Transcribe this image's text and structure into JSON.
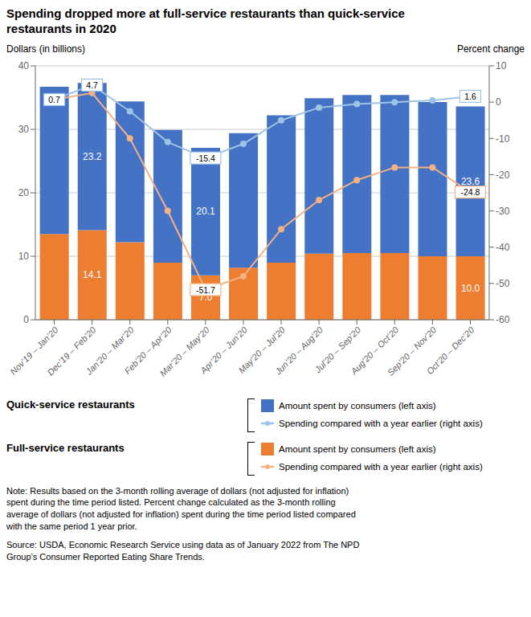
{
  "chart_data": {
    "type": "bar",
    "title": "Spending dropped more at full-service restaurants than quick-service\nrestaurants in 2020",
    "y_label": "Dollars (in billions)",
    "y2_label": "Percent change",
    "categories": [
      "Nov’19 – Jan’20",
      "Dec’19 – Feb’20",
      "Jan’20 – Mar’20",
      "Feb’20 – Apr’20",
      "Mar’20 – May’20",
      "Apr’20 – Jun’20",
      "May’20 – Jul’20",
      "Jun’20 – Aug’20",
      "Jul’20 – Sep’20",
      "Aug’20 – Oct’20",
      "Sep’20 – Nov’20",
      "Oct’20 – Dec’20"
    ],
    "series": [
      {
        "name": "Full-service restaurants",
        "type": "bar",
        "color": "#ED7D31",
        "values": [
          13.5,
          14.1,
          12.2,
          9.0,
          7.0,
          8.2,
          9.0,
          10.4,
          10.5,
          10.5,
          10.0,
          10.0
        ],
        "value_labels": [
          null,
          "14.1",
          null,
          null,
          "7.0",
          null,
          null,
          null,
          null,
          null,
          null,
          "10.0"
        ]
      },
      {
        "name": "Quick-service restaurants",
        "type": "bar",
        "color": "#4472C4",
        "values": [
          23.2,
          23.2,
          22.2,
          20.9,
          20.1,
          21.2,
          23.2,
          24.5,
          24.9,
          24.9,
          24.3,
          23.6
        ],
        "value_labels": [
          null,
          "23.2",
          null,
          null,
          "20.1",
          null,
          null,
          null,
          null,
          null,
          null,
          "23.6"
        ]
      },
      {
        "name": "Quick-service restaurants",
        "type": "line",
        "axis": "y2",
        "color": "#9DC3E6",
        "marker": "circle",
        "values": [
          0.7,
          4.7,
          -2.5,
          -11.0,
          -15.4,
          -11.5,
          -5.0,
          -1.5,
          -0.5,
          0.0,
          0.5,
          1.6
        ],
        "value_labels": [
          "0.7",
          "4.7",
          null,
          null,
          "-15.4",
          null,
          null,
          null,
          null,
          null,
          null,
          "1.6"
        ]
      },
      {
        "name": "Full-service restaurants",
        "type": "line",
        "axis": "y2",
        "color": "#F4B183",
        "marker": "circle",
        "values": [
          0.7,
          2.5,
          -10.0,
          -30.0,
          -51.7,
          -48.0,
          -35.0,
          -27.0,
          -21.5,
          -18.0,
          -18.0,
          -24.8
        ],
        "value_labels": [
          null,
          null,
          null,
          null,
          "-51.7",
          null,
          null,
          null,
          null,
          null,
          null,
          "-24.8"
        ]
      }
    ],
    "stacked": true,
    "data_labels": true,
    "ylim": [
      0,
      40
    ],
    "yticks": [
      0,
      10,
      20,
      30,
      40
    ],
    "y2lim": [
      -60,
      10
    ],
    "y2ticks": [
      10,
      0,
      -10,
      -20,
      -30,
      -40,
      -50,
      -60
    ],
    "grid": true,
    "legend": "bottom",
    "legend_entries": {
      "bar": "Amount spent by consumers (left axis)",
      "line": "Spending compared with a year earlier (right axis)"
    },
    "notes": [
      "Note: Results based on the 3-month rolling average of dollars (not adjusted for inflation)\nspent during the time period listed. Percent change calculated as the 3-month rolling\naverage of dollars (not adjusted for inflation) spent during the time period listed compared\nwith the same period 1 year prior.",
      "Source: USDA, Economic Research Service using data as of January 2022 from The NPD\nGroup’s Consumer Reported Eating Share Trends."
    ]
  }
}
